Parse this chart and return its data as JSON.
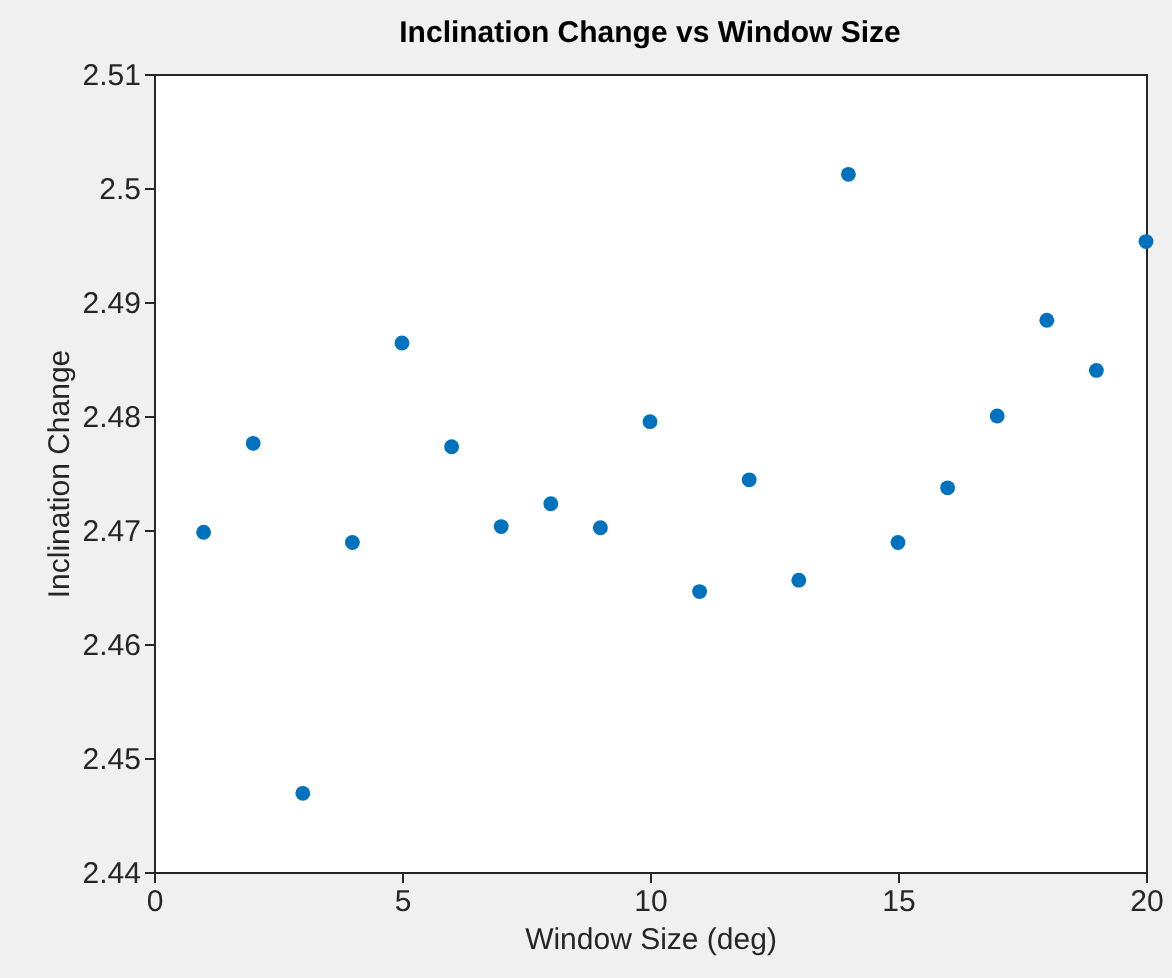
{
  "chart_data": {
    "type": "scatter",
    "title": "Inclination Change vs Window Size",
    "xlabel": "Window Size (deg)",
    "ylabel": "Inclination Change",
    "x": [
      1,
      2,
      3,
      4,
      5,
      6,
      7,
      8,
      9,
      10,
      11,
      12,
      13,
      14,
      15,
      16,
      17,
      18,
      19,
      20
    ],
    "series": [
      {
        "color": "#0072bd",
        "values": [
          2.4698,
          2.4776,
          2.4469,
          2.4689,
          2.4864,
          2.4773,
          2.4703,
          2.4723,
          2.4702,
          2.4795,
          2.4646,
          2.4744,
          2.4656,
          2.5012,
          2.4689,
          2.4737,
          2.48,
          2.4884,
          2.484,
          2.4953
        ]
      }
    ],
    "xlim": [
      0,
      20
    ],
    "xticks": [
      0,
      5,
      10,
      15,
      20
    ],
    "ylim": [
      2.44,
      2.51
    ],
    "yticks": [
      2.44,
      2.45,
      2.46,
      2.47,
      2.48,
      2.49,
      2.5,
      2.51
    ],
    "grid": false,
    "legend": false,
    "marker": "circle"
  }
}
